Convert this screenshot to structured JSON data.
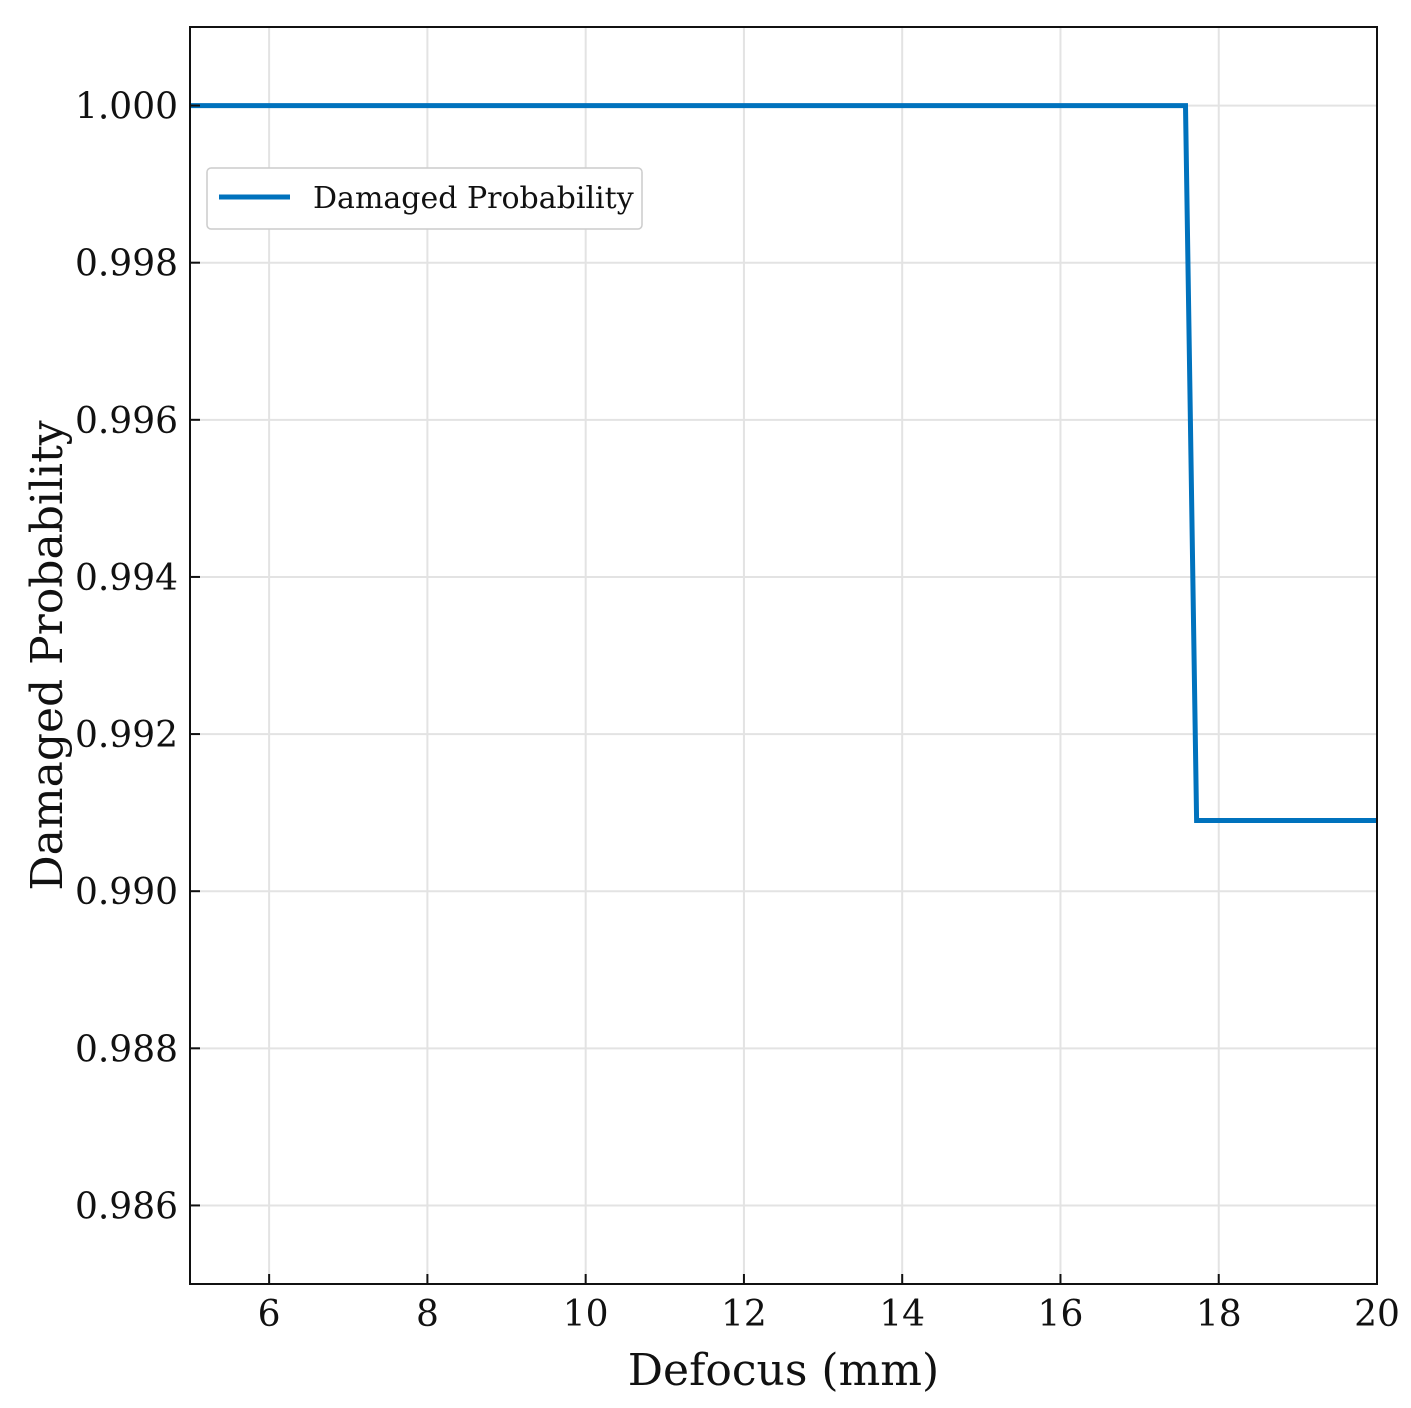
{
  "chart_data": {
    "type": "line",
    "title": "",
    "xlabel": "Defocus (mm)",
    "ylabel": "Damaged Probability",
    "xlim": [
      5,
      20
    ],
    "ylim": [
      0.985,
      1.001
    ],
    "xticks": [
      6,
      8,
      10,
      12,
      14,
      16,
      18,
      20
    ],
    "xtick_labels": [
      "6",
      "8",
      "10",
      "12",
      "14",
      "16",
      "18",
      "20"
    ],
    "yticks": [
      0.986,
      0.988,
      0.99,
      0.992,
      0.994,
      0.996,
      0.998,
      1.0
    ],
    "ytick_labels": [
      "0.986",
      "0.988",
      "0.990",
      "0.992",
      "0.994",
      "0.996",
      "0.998",
      "1.000"
    ],
    "grid": true,
    "legend": {
      "placement": "upper-left"
    },
    "series": [
      {
        "name": "Damaged Probability",
        "color": "#0072BD",
        "x": [
          5.0,
          17.58,
          17.72,
          20.0
        ],
        "y": [
          1.0,
          1.0,
          0.9909,
          0.9909
        ]
      }
    ]
  }
}
